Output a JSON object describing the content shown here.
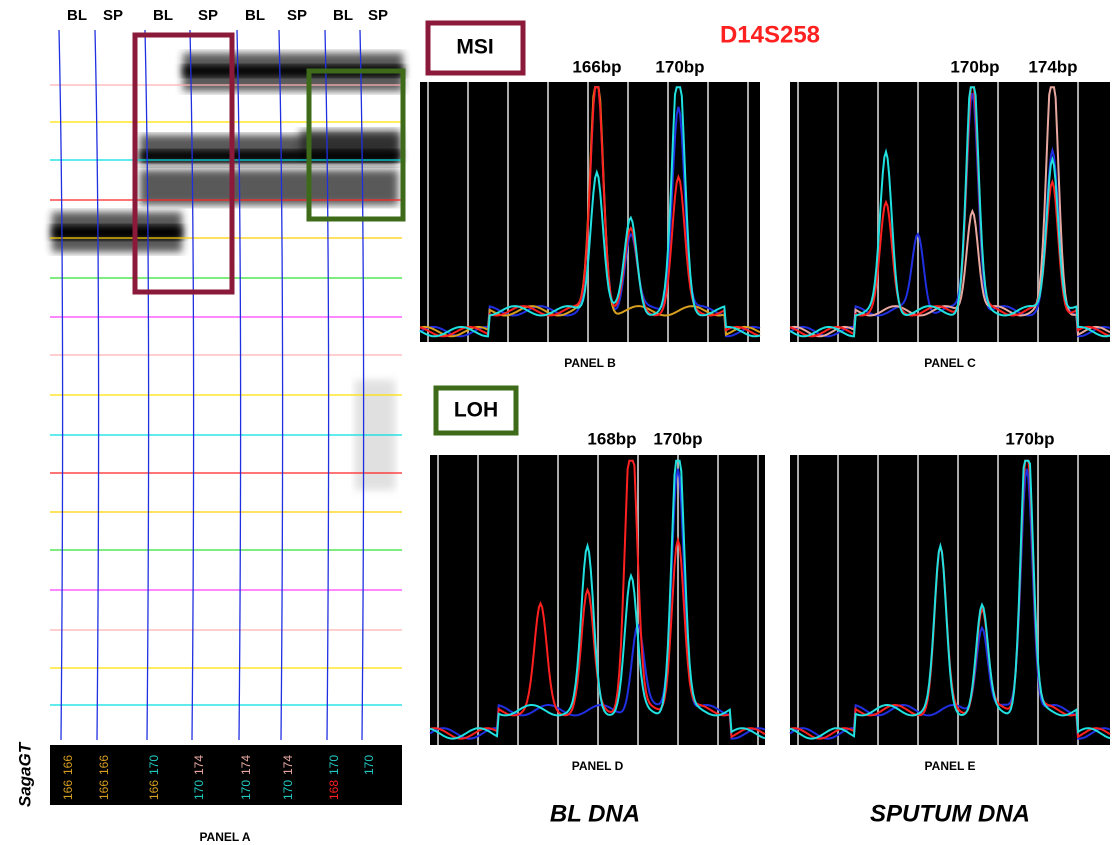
{
  "marker": "D14S258",
  "boxes": {
    "msi": "MSI",
    "loh": "LOH"
  },
  "gel": {
    "lane_headers": [
      "BL",
      "SP",
      "BL",
      "SP",
      "BL",
      "SP",
      "BL",
      "SP"
    ],
    "alleles_top": [
      {
        "text": "166",
        "color": "#d9a020"
      },
      {
        "text": "166",
        "color": "#d9a020"
      },
      {
        "text": "170",
        "color": "#20c8c0"
      },
      {
        "text": "174",
        "color": "#e8a8a0"
      },
      {
        "text": "174",
        "color": "#e8a8a0"
      },
      {
        "text": "174",
        "color": "#e8a8a0"
      },
      {
        "text": "170",
        "color": "#20c8c0"
      },
      {
        "text": "170",
        "color": "#20c8c0"
      }
    ],
    "alleles_bottom": [
      {
        "text": "166",
        "color": "#d9a020"
      },
      {
        "text": "166",
        "color": "#d9a020"
      },
      {
        "text": "166",
        "color": "#d9a020"
      },
      {
        "text": "170",
        "color": "#20c8c0"
      },
      {
        "text": "170",
        "color": "#20c8c0"
      },
      {
        "text": "170",
        "color": "#20c8c0"
      },
      {
        "text": "168",
        "color": "#ff2020"
      }
    ],
    "caption": "PANEL A",
    "label": "SagaGT"
  },
  "panels": [
    {
      "peaks": [
        "166bp",
        "170bp"
      ],
      "caption": "PANEL B"
    },
    {
      "peaks": [
        "170bp",
        "174bp"
      ],
      "caption": "PANEL C"
    },
    {
      "peaks": [
        "168bp",
        "170bp"
      ],
      "caption": "PANEL D"
    },
    {
      "peaks": [
        "170bp"
      ],
      "caption": "PANEL E"
    }
  ],
  "columns": [
    "BL DNA",
    "SPUTUM DNA"
  ]
}
